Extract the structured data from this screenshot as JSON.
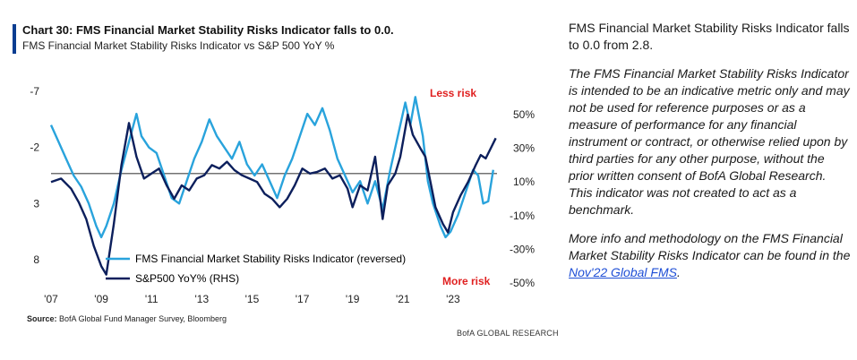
{
  "header": {
    "title": "Chart 30: FMS Financial Market Stability Risks Indicator falls to 0.0.",
    "subtitle": "FMS Financial Market Stability Risks Indicator vs S&P 500 YoY %"
  },
  "footer": {
    "source_label": "Source:",
    "source_text": " BofA Global Fund Manager Survey, Bloomberg",
    "brand": "BofA GLOBAL RESEARCH"
  },
  "sidebar": {
    "headline": "FMS Financial Market Stability Risks Indicator falls to 0.0 from 2.8.",
    "disclaimer": "The FMS Financial Market Stability Risks Indicator is intended to be an indicative metric only and may not be used for reference purposes or as a measure of performance for any financial instrument or contract, or otherwise relied upon by third parties for any other purpose, without the prior written consent of BofA Global Research. This indicator was not created to act as a benchmark.",
    "more_info": "More info and methodology on the FMS Financial Market Stability Risks Indicator can be found in the ",
    "link_text": "Nov'22 Global FMS",
    "link_suffix": "."
  },
  "colors": {
    "fms_series": "#29a3dc",
    "spx_series": "#0c1f5c",
    "annotation": "#e02020",
    "axis_text": "#222222",
    "link": "#1f4fd6"
  },
  "chart_data": {
    "type": "line",
    "x_ticks": [
      "'07",
      "'09",
      "'11",
      "'13",
      "'15",
      "'17",
      "'19",
      "'21",
      "'23"
    ],
    "x_tick_years": [
      2007,
      2009,
      2011,
      2013,
      2015,
      2017,
      2019,
      2021,
      2023
    ],
    "xlim": [
      2007,
      2024.75
    ],
    "y_left": {
      "ticks": [
        "-7",
        "-2",
        "3",
        "8"
      ],
      "values": [
        -7,
        -2,
        3,
        8
      ],
      "range": [
        -7,
        8
      ],
      "reversed": true
    },
    "y_right": {
      "ticks": [
        "50%",
        "30%",
        "10%",
        "-10%",
        "-30%",
        "-50%"
      ],
      "values": [
        50,
        30,
        10,
        -10,
        -30,
        -50
      ],
      "range": [
        -50,
        50
      ]
    },
    "annotations": {
      "top": "Less risk",
      "bottom": "More risk"
    },
    "reference_line": {
      "axis": "right",
      "value": 15
    },
    "legend": {
      "placement": "bottom-left"
    },
    "series": [
      {
        "name": "FMS Financial Market Stability Risks Indicator (reversed)",
        "axis": "left",
        "points": [
          [
            2007.0,
            -4.0
          ],
          [
            2007.3,
            -2.5
          ],
          [
            2007.6,
            -1.0
          ],
          [
            2007.9,
            0.5
          ],
          [
            2008.2,
            1.5
          ],
          [
            2008.5,
            3.0
          ],
          [
            2008.8,
            5.0
          ],
          [
            2009.0,
            6.0
          ],
          [
            2009.2,
            5.0
          ],
          [
            2009.5,
            3.0
          ],
          [
            2009.8,
            0.0
          ],
          [
            2010.1,
            -2.5
          ],
          [
            2010.4,
            -5.0
          ],
          [
            2010.6,
            -3.0
          ],
          [
            2010.9,
            -2.0
          ],
          [
            2011.2,
            -1.5
          ],
          [
            2011.5,
            0.5
          ],
          [
            2011.8,
            2.5
          ],
          [
            2012.1,
            3.0
          ],
          [
            2012.4,
            1.0
          ],
          [
            2012.7,
            -1.0
          ],
          [
            2013.0,
            -2.5
          ],
          [
            2013.3,
            -4.5
          ],
          [
            2013.6,
            -3.0
          ],
          [
            2013.9,
            -2.0
          ],
          [
            2014.2,
            -1.0
          ],
          [
            2014.5,
            -2.5
          ],
          [
            2014.8,
            -0.5
          ],
          [
            2015.1,
            0.5
          ],
          [
            2015.4,
            -0.5
          ],
          [
            2015.7,
            1.0
          ],
          [
            2016.0,
            2.5
          ],
          [
            2016.3,
            0.5
          ],
          [
            2016.6,
            -1.0
          ],
          [
            2016.9,
            -3.0
          ],
          [
            2017.2,
            -5.0
          ],
          [
            2017.5,
            -4.0
          ],
          [
            2017.8,
            -5.5
          ],
          [
            2018.1,
            -3.5
          ],
          [
            2018.4,
            -1.0
          ],
          [
            2018.7,
            0.5
          ],
          [
            2019.0,
            2.0
          ],
          [
            2019.3,
            1.0
          ],
          [
            2019.6,
            3.0
          ],
          [
            2019.9,
            1.0
          ],
          [
            2020.2,
            3.5
          ],
          [
            2020.5,
            0.0
          ],
          [
            2020.8,
            -3.0
          ],
          [
            2021.1,
            -6.0
          ],
          [
            2021.3,
            -4.0
          ],
          [
            2021.5,
            -6.5
          ],
          [
            2021.8,
            -3.0
          ],
          [
            2022.0,
            1.0
          ],
          [
            2022.2,
            3.0
          ],
          [
            2022.5,
            5.0
          ],
          [
            2022.7,
            6.0
          ],
          [
            2022.9,
            5.5
          ],
          [
            2023.2,
            4.0
          ],
          [
            2023.5,
            2.0
          ],
          [
            2023.8,
            0.0
          ],
          [
            2024.0,
            0.5
          ],
          [
            2024.2,
            3.0
          ],
          [
            2024.4,
            2.8
          ],
          [
            2024.6,
            0.0
          ]
        ]
      },
      {
        "name": "S&P500 YoY% (RHS)",
        "axis": "right",
        "points": [
          [
            2007.0,
            10
          ],
          [
            2007.4,
            12
          ],
          [
            2007.8,
            6
          ],
          [
            2008.1,
            -2
          ],
          [
            2008.4,
            -12
          ],
          [
            2008.7,
            -28
          ],
          [
            2009.0,
            -40
          ],
          [
            2009.2,
            -45
          ],
          [
            2009.5,
            -15
          ],
          [
            2009.8,
            20
          ],
          [
            2010.1,
            45
          ],
          [
            2010.4,
            25
          ],
          [
            2010.7,
            12
          ],
          [
            2011.0,
            15
          ],
          [
            2011.3,
            18
          ],
          [
            2011.6,
            8
          ],
          [
            2011.9,
            0
          ],
          [
            2012.2,
            8
          ],
          [
            2012.5,
            5
          ],
          [
            2012.8,
            12
          ],
          [
            2013.1,
            14
          ],
          [
            2013.4,
            20
          ],
          [
            2013.7,
            18
          ],
          [
            2014.0,
            22
          ],
          [
            2014.3,
            17
          ],
          [
            2014.6,
            14
          ],
          [
            2014.9,
            12
          ],
          [
            2015.2,
            10
          ],
          [
            2015.5,
            3
          ],
          [
            2015.8,
            0
          ],
          [
            2016.1,
            -5
          ],
          [
            2016.4,
            0
          ],
          [
            2016.7,
            8
          ],
          [
            2017.0,
            18
          ],
          [
            2017.3,
            15
          ],
          [
            2017.6,
            16
          ],
          [
            2017.9,
            18
          ],
          [
            2018.2,
            12
          ],
          [
            2018.5,
            14
          ],
          [
            2018.8,
            6
          ],
          [
            2019.0,
            -5
          ],
          [
            2019.3,
            8
          ],
          [
            2019.6,
            5
          ],
          [
            2019.9,
            25
          ],
          [
            2020.2,
            -12
          ],
          [
            2020.4,
            8
          ],
          [
            2020.7,
            15
          ],
          [
            2020.9,
            25
          ],
          [
            2021.2,
            50
          ],
          [
            2021.4,
            38
          ],
          [
            2021.7,
            30
          ],
          [
            2021.9,
            25
          ],
          [
            2022.1,
            10
          ],
          [
            2022.3,
            -5
          ],
          [
            2022.6,
            -15
          ],
          [
            2022.8,
            -20
          ],
          [
            2023.0,
            -8
          ],
          [
            2023.3,
            2
          ],
          [
            2023.6,
            10
          ],
          [
            2023.9,
            20
          ],
          [
            2024.1,
            26
          ],
          [
            2024.3,
            24
          ],
          [
            2024.5,
            30
          ],
          [
            2024.7,
            36
          ]
        ]
      }
    ]
  }
}
